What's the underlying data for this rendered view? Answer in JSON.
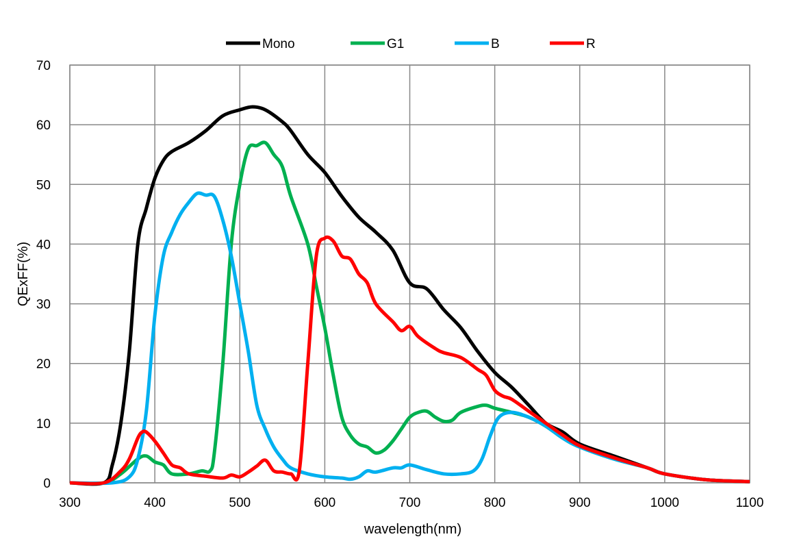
{
  "chart_data": {
    "type": "line",
    "title": "",
    "xlabel": "wavelength(nm)",
    "ylabel": "QExFF(%)",
    "xlim": [
      300,
      1100
    ],
    "ylim": [
      0,
      70
    ],
    "xticks": [
      300,
      400,
      500,
      600,
      700,
      800,
      900,
      1000,
      1100
    ],
    "yticks": [
      0,
      10,
      20,
      30,
      40,
      50,
      60,
      70
    ],
    "grid": true,
    "legend_position": "top",
    "series": [
      {
        "name": "Mono",
        "color": "#000000",
        "points": [
          [
            300,
            0
          ],
          [
            340,
            0
          ],
          [
            350,
            3
          ],
          [
            360,
            10
          ],
          [
            370,
            22
          ],
          [
            380,
            40
          ],
          [
            390,
            46
          ],
          [
            400,
            51
          ],
          [
            410,
            54
          ],
          [
            420,
            55.5
          ],
          [
            440,
            57
          ],
          [
            460,
            59
          ],
          [
            480,
            61.5
          ],
          [
            500,
            62.5
          ],
          [
            515,
            63
          ],
          [
            530,
            62.5
          ],
          [
            550,
            60.5
          ],
          [
            560,
            59
          ],
          [
            580,
            55
          ],
          [
            600,
            52
          ],
          [
            620,
            48
          ],
          [
            640,
            44.5
          ],
          [
            660,
            42
          ],
          [
            680,
            39
          ],
          [
            700,
            33.5
          ],
          [
            720,
            32.5
          ],
          [
            740,
            29
          ],
          [
            760,
            26
          ],
          [
            780,
            22
          ],
          [
            800,
            18.5
          ],
          [
            820,
            16
          ],
          [
            840,
            13
          ],
          [
            860,
            10
          ],
          [
            880,
            8.5
          ],
          [
            900,
            6.5
          ],
          [
            940,
            4.5
          ],
          [
            980,
            2.5
          ],
          [
            1000,
            1.5
          ],
          [
            1050,
            0.5
          ],
          [
            1100,
            0.2
          ]
        ]
      },
      {
        "name": "G1",
        "color": "#00b050",
        "points": [
          [
            300,
            0
          ],
          [
            340,
            0
          ],
          [
            360,
            1.5
          ],
          [
            380,
            4
          ],
          [
            390,
            4.5
          ],
          [
            400,
            3.5
          ],
          [
            410,
            3
          ],
          [
            420,
            1.5
          ],
          [
            440,
            1.5
          ],
          [
            455,
            2
          ],
          [
            465,
            2
          ],
          [
            470,
            5
          ],
          [
            480,
            20
          ],
          [
            490,
            40
          ],
          [
            500,
            50
          ],
          [
            510,
            56
          ],
          [
            520,
            56.5
          ],
          [
            530,
            57
          ],
          [
            540,
            55
          ],
          [
            550,
            53
          ],
          [
            560,
            48
          ],
          [
            580,
            40
          ],
          [
            590,
            33
          ],
          [
            600,
            26
          ],
          [
            610,
            18
          ],
          [
            620,
            11
          ],
          [
            630,
            8
          ],
          [
            640,
            6.5
          ],
          [
            650,
            6
          ],
          [
            660,
            5
          ],
          [
            670,
            5.5
          ],
          [
            680,
            7
          ],
          [
            690,
            9
          ],
          [
            700,
            11
          ],
          [
            710,
            11.8
          ],
          [
            720,
            12
          ],
          [
            730,
            11
          ],
          [
            740,
            10.3
          ],
          [
            750,
            10.5
          ],
          [
            760,
            11.8
          ],
          [
            780,
            12.8
          ],
          [
            790,
            13
          ],
          [
            800,
            12.5
          ],
          [
            820,
            11.8
          ],
          [
            840,
            11
          ],
          [
            860,
            9.5
          ],
          [
            880,
            7.5
          ],
          [
            900,
            6
          ],
          [
            940,
            4
          ],
          [
            980,
            2.5
          ],
          [
            1000,
            1.5
          ],
          [
            1050,
            0.5
          ],
          [
            1100,
            0.2
          ]
        ]
      },
      {
        "name": "B",
        "color": "#00b0f0",
        "points": [
          [
            300,
            0
          ],
          [
            350,
            0
          ],
          [
            370,
            1
          ],
          [
            380,
            4
          ],
          [
            390,
            12
          ],
          [
            400,
            28
          ],
          [
            410,
            38
          ],
          [
            420,
            42
          ],
          [
            430,
            45
          ],
          [
            440,
            47
          ],
          [
            450,
            48.5
          ],
          [
            460,
            48.2
          ],
          [
            470,
            48
          ],
          [
            480,
            44
          ],
          [
            490,
            38
          ],
          [
            500,
            30
          ],
          [
            510,
            22
          ],
          [
            520,
            13
          ],
          [
            530,
            9
          ],
          [
            540,
            6
          ],
          [
            550,
            4
          ],
          [
            560,
            2.5
          ],
          [
            580,
            1.5
          ],
          [
            600,
            1
          ],
          [
            620,
            0.8
          ],
          [
            630,
            0.6
          ],
          [
            640,
            1
          ],
          [
            650,
            2
          ],
          [
            660,
            1.8
          ],
          [
            680,
            2.5
          ],
          [
            690,
            2.5
          ],
          [
            700,
            3
          ],
          [
            720,
            2.2
          ],
          [
            740,
            1.5
          ],
          [
            760,
            1.5
          ],
          [
            775,
            2
          ],
          [
            785,
            4
          ],
          [
            795,
            8
          ],
          [
            805,
            11
          ],
          [
            820,
            11.8
          ],
          [
            840,
            11
          ],
          [
            860,
            9.5
          ],
          [
            880,
            7.5
          ],
          [
            900,
            6
          ],
          [
            940,
            4
          ],
          [
            980,
            2.5
          ],
          [
            1000,
            1.5
          ],
          [
            1050,
            0.5
          ],
          [
            1100,
            0.2
          ]
        ]
      },
      {
        "name": "R",
        "color": "#ff0000",
        "points": [
          [
            300,
            0
          ],
          [
            340,
            0
          ],
          [
            360,
            2
          ],
          [
            370,
            4
          ],
          [
            380,
            7.5
          ],
          [
            385,
            8.5
          ],
          [
            390,
            8.5
          ],
          [
            400,
            7
          ],
          [
            410,
            5
          ],
          [
            420,
            3
          ],
          [
            430,
            2.5
          ],
          [
            440,
            1.5
          ],
          [
            460,
            1.1
          ],
          [
            480,
            0.8
          ],
          [
            490,
            1.3
          ],
          [
            500,
            1
          ],
          [
            510,
            1.8
          ],
          [
            520,
            2.8
          ],
          [
            530,
            3.8
          ],
          [
            540,
            2
          ],
          [
            550,
            1.8
          ],
          [
            560,
            1.5
          ],
          [
            570,
            2
          ],
          [
            580,
            20
          ],
          [
            590,
            38
          ],
          [
            600,
            41
          ],
          [
            610,
            40.5
          ],
          [
            620,
            38
          ],
          [
            630,
            37.5
          ],
          [
            640,
            35
          ],
          [
            650,
            33.5
          ],
          [
            660,
            30
          ],
          [
            680,
            27
          ],
          [
            690,
            25.5
          ],
          [
            700,
            26.2
          ],
          [
            710,
            24.5
          ],
          [
            730,
            22.5
          ],
          [
            740,
            21.8
          ],
          [
            760,
            21
          ],
          [
            780,
            19
          ],
          [
            790,
            18
          ],
          [
            800,
            15.5
          ],
          [
            810,
            14.5
          ],
          [
            820,
            14
          ],
          [
            840,
            12
          ],
          [
            860,
            10
          ],
          [
            880,
            8
          ],
          [
            900,
            6.2
          ],
          [
            940,
            4.2
          ],
          [
            980,
            2.5
          ],
          [
            1000,
            1.5
          ],
          [
            1050,
            0.5
          ],
          [
            1100,
            0.2
          ]
        ]
      }
    ]
  }
}
